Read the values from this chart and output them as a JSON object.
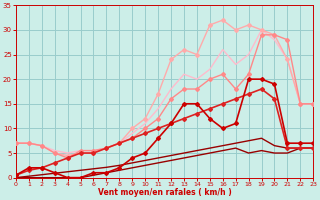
{
  "bg_color": "#cceee8",
  "grid_color": "#99cccc",
  "xlabel": "Vent moyen/en rafales ( km/h )",
  "xlabel_color": "#cc0000",
  "tick_color": "#cc0000",
  "xmin": 0,
  "xmax": 23,
  "ymin": 0,
  "ymax": 35,
  "yticks": [
    0,
    5,
    10,
    15,
    20,
    25,
    30,
    35
  ],
  "xticks": [
    0,
    1,
    2,
    3,
    4,
    5,
    6,
    7,
    8,
    9,
    10,
    11,
    12,
    13,
    14,
    15,
    16,
    17,
    18,
    19,
    20,
    21,
    22,
    23
  ],
  "lines": [
    {
      "x": [
        0,
        1,
        2,
        3,
        4,
        5,
        6,
        7,
        8,
        9,
        10,
        11,
        12,
        13,
        14,
        15,
        16,
        17,
        18,
        19,
        20,
        21,
        22,
        23
      ],
      "y": [
        7,
        7,
        6.5,
        5.5,
        5,
        5.5,
        5.5,
        6,
        7,
        9,
        11,
        14,
        18,
        21,
        20,
        22,
        26,
        23,
        25,
        30,
        28,
        24,
        15,
        15
      ],
      "color": "#ffbbcc",
      "lw": 1.0,
      "marker": null,
      "ms": 0,
      "zorder": 2
    },
    {
      "x": [
        0,
        1,
        2,
        3,
        4,
        5,
        6,
        7,
        8,
        9,
        10,
        11,
        12,
        13,
        14,
        15,
        16,
        17,
        18,
        19,
        20,
        21,
        22,
        23
      ],
      "y": [
        7,
        7,
        6.5,
        5,
        4.5,
        5,
        5,
        6,
        7,
        10,
        12,
        17,
        24,
        26,
        25,
        31,
        32,
        30,
        31,
        30,
        29,
        24,
        15,
        15
      ],
      "color": "#ffaaaa",
      "lw": 1.0,
      "marker": "D",
      "ms": 2.0,
      "zorder": 3
    },
    {
      "x": [
        0,
        1,
        2,
        3,
        4,
        5,
        6,
        7,
        8,
        9,
        10,
        11,
        12,
        13,
        14,
        15,
        16,
        17,
        18,
        19,
        20,
        21,
        22,
        23
      ],
      "y": [
        7,
        7,
        6.5,
        5,
        4,
        5.5,
        5.5,
        6,
        7,
        8,
        10,
        12,
        16,
        18,
        18,
        20,
        21,
        18,
        21,
        29,
        29,
        28,
        15,
        15
      ],
      "color": "#ff8888",
      "lw": 1.0,
      "marker": "D",
      "ms": 2.0,
      "zorder": 4
    },
    {
      "x": [
        0,
        1,
        2,
        3,
        4,
        5,
        6,
        7,
        8,
        9,
        10,
        11,
        12,
        13,
        14,
        15,
        16,
        17,
        18,
        19,
        20,
        21,
        22,
        23
      ],
      "y": [
        0,
        0.3,
        0.6,
        0.9,
        1.2,
        1.5,
        1.8,
        2.1,
        2.5,
        3.0,
        3.5,
        4.0,
        4.5,
        5.0,
        5.5,
        6.0,
        6.5,
        7.0,
        7.5,
        8.0,
        6.5,
        6,
        6,
        6
      ],
      "color": "#990000",
      "lw": 1.0,
      "marker": null,
      "ms": 0,
      "zorder": 3
    },
    {
      "x": [
        0,
        1,
        2,
        3,
        4,
        5,
        6,
        7,
        8,
        9,
        10,
        11,
        12,
        13,
        14,
        15,
        16,
        17,
        18,
        19,
        20,
        21,
        22,
        23
      ],
      "y": [
        0,
        0,
        0,
        0,
        0,
        0,
        0.5,
        1,
        1.5,
        2,
        2.5,
        3,
        3.5,
        4,
        4.5,
        5,
        5.5,
        6,
        5,
        5.5,
        5,
        5,
        6,
        6
      ],
      "color": "#990000",
      "lw": 1.0,
      "marker": null,
      "ms": 0,
      "zorder": 3
    },
    {
      "x": [
        0,
        1,
        2,
        3,
        4,
        5,
        6,
        7,
        8,
        9,
        10,
        11,
        12,
        13,
        14,
        15,
        16,
        17,
        18,
        19,
        20,
        21,
        22,
        23
      ],
      "y": [
        0.5,
        1.5,
        2,
        3,
        4,
        5,
        5,
        6,
        7,
        8,
        9,
        10,
        11,
        12,
        13,
        14,
        15,
        16,
        17,
        18,
        16,
        6,
        6,
        6
      ],
      "color": "#dd2222",
      "lw": 1.2,
      "marker": "D",
      "ms": 2.0,
      "zorder": 5
    },
    {
      "x": [
        0,
        1,
        2,
        3,
        4,
        5,
        6,
        7,
        8,
        9,
        10,
        11,
        12,
        13,
        14,
        15,
        16,
        17,
        18,
        19,
        20,
        21,
        22,
        23
      ],
      "y": [
        0.5,
        2,
        2,
        1,
        0,
        0,
        1,
        1,
        2,
        4,
        5,
        8,
        11,
        15,
        15,
        12,
        10,
        11,
        20,
        20,
        19,
        7,
        7,
        7
      ],
      "color": "#cc0000",
      "lw": 1.2,
      "marker": "D",
      "ms": 2.0,
      "zorder": 6
    }
  ]
}
